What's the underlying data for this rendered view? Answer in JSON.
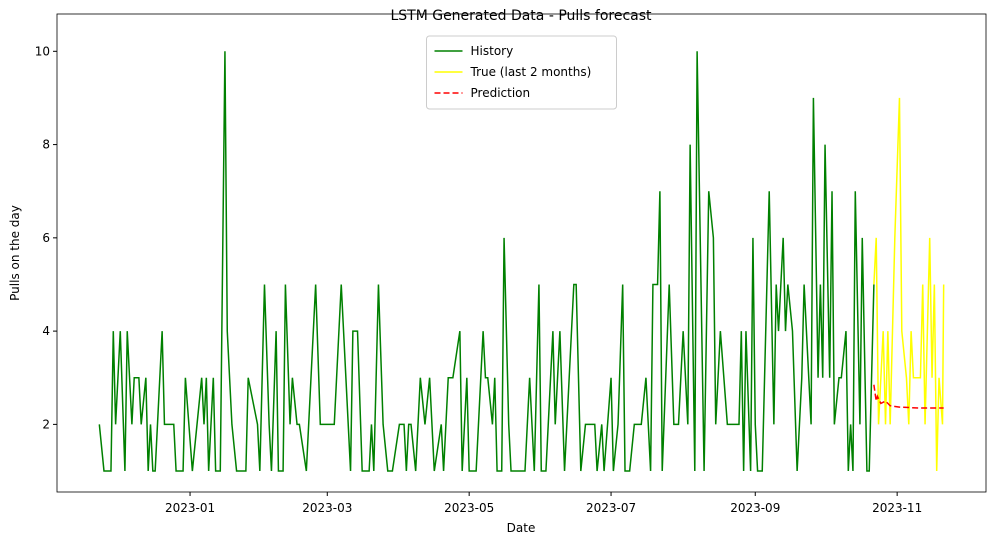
{
  "chart_data": {
    "type": "line",
    "title": "LSTM Generated Data - Pulls forecast",
    "x_label": "Date",
    "y_label": "Pulls on the day",
    "xlim": [
      -57.2,
      342.2
    ],
    "xticks": [
      {
        "value": 0,
        "label": "2023-01"
      },
      {
        "value": 59,
        "label": "2023-03"
      },
      {
        "value": 120,
        "label": "2023-05"
      },
      {
        "value": 181,
        "label": "2023-07"
      },
      {
        "value": 243,
        "label": "2023-09"
      },
      {
        "value": 304,
        "label": "2023-11"
      }
    ],
    "ylim": [
      0.55,
      10.8
    ],
    "yticks": [
      2,
      4,
      6,
      8,
      10
    ],
    "legend": "upper center",
    "series": [
      {
        "name": "History",
        "color": "#008000",
        "linestyle": "solid",
        "x": [
          -39,
          -37,
          -34,
          -33,
          -32,
          -30,
          -28,
          -27,
          -25,
          -24,
          -22,
          -21,
          -19,
          -18,
          -17,
          -16,
          -15,
          -12,
          -11,
          -9,
          -7,
          -6,
          -3,
          -2,
          1,
          3,
          5,
          6,
          7,
          8,
          10,
          11,
          13,
          15,
          16,
          18,
          20,
          24,
          25,
          29,
          30,
          32,
          34,
          35,
          37,
          38,
          40,
          41,
          43,
          44,
          46,
          47,
          50,
          52,
          54,
          56,
          59,
          62,
          65,
          67,
          69,
          70,
          72,
          74,
          77,
          78,
          79,
          81,
          83,
          85,
          87,
          90,
          92,
          93,
          94,
          95,
          97,
          99,
          101,
          103,
          105,
          108,
          109,
          111,
          113,
          116,
          117,
          119,
          120,
          123,
          126,
          127,
          128,
          130,
          131,
          132,
          134,
          135,
          137,
          138,
          142,
          144,
          146,
          148,
          150,
          151,
          153,
          156,
          157,
          159,
          161,
          163,
          165,
          166,
          168,
          170,
          172,
          174,
          175,
          177,
          178,
          181,
          182,
          184,
          186,
          187,
          189,
          191,
          194,
          196,
          198,
          199,
          201,
          202,
          203,
          206,
          208,
          210,
          212,
          214,
          215,
          217,
          218,
          221,
          223,
          225,
          226,
          228,
          231,
          236,
          237,
          238,
          239,
          241,
          242,
          243,
          244,
          246,
          249,
          251,
          252,
          253,
          255,
          256,
          257,
          259,
          261,
          263,
          264,
          267,
          268,
          270,
          271,
          272,
          273,
          275,
          276,
          277,
          279,
          280,
          282,
          283,
          284,
          285,
          286,
          288,
          289,
          291,
          292,
          294
        ],
        "values": [
          2,
          1,
          1,
          4,
          2,
          4,
          1,
          4,
          2,
          3,
          3,
          2,
          3,
          1,
          2,
          1,
          1,
          4,
          2,
          2,
          2,
          1,
          1,
          3,
          1,
          2,
          3,
          2,
          3,
          1,
          3,
          1,
          1,
          10,
          4,
          2,
          1,
          1,
          3,
          2,
          1,
          5,
          2,
          1,
          4,
          1,
          1,
          5,
          2,
          3,
          2,
          2,
          1,
          3,
          5,
          2,
          2,
          2,
          5,
          3,
          1,
          4,
          4,
          1,
          1,
          2,
          1,
          5,
          2,
          1,
          1,
          2,
          2,
          1,
          2,
          2,
          1,
          3,
          2,
          3,
          1,
          2,
          1,
          3,
          3,
          4,
          1,
          3,
          1,
          1,
          4,
          3,
          3,
          2,
          3,
          1,
          1,
          6,
          2,
          1,
          1,
          1,
          3,
          1,
          5,
          1,
          1,
          4,
          2,
          4,
          1,
          3,
          5,
          5,
          1,
          2,
          2,
          2,
          1,
          2,
          1,
          3,
          1,
          2,
          5,
          1,
          1,
          2,
          2,
          3,
          1,
          5,
          5,
          7,
          1,
          5,
          2,
          2,
          4,
          2,
          8,
          1,
          10,
          1,
          7,
          6,
          2,
          4,
          2,
          2,
          4,
          1,
          4,
          1,
          6,
          2,
          1,
          1,
          7,
          2,
          5,
          4,
          6,
          4,
          5,
          4,
          1,
          3,
          5,
          2,
          9,
          3,
          5,
          3,
          8,
          3,
          7,
          2,
          3,
          3,
          4,
          1,
          2,
          1,
          7,
          2,
          6,
          1,
          1,
          5
        ]
      },
      {
        "name": "True (last 2 months)",
        "color": "#ffff00",
        "linestyle": "solid",
        "x": [
          294,
          295,
          296,
          298,
          299,
          300,
          301,
          303,
          305,
          306,
          308,
          309,
          310,
          311,
          314,
          315,
          316,
          318,
          319,
          320,
          321,
          322,
          323.5,
          324
        ],
        "values": [
          5,
          6,
          2,
          4,
          2,
          4,
          2,
          6,
          9,
          4,
          3,
          2,
          4,
          3,
          3,
          5,
          2,
          6,
          3,
          5,
          1,
          3,
          2,
          5
        ]
      },
      {
        "name": "Prediction",
        "color": "#ff0000",
        "linestyle": "dashed",
        "x": [
          294,
          295,
          295.5,
          297,
          299,
          301,
          305,
          314,
          324
        ],
        "values": [
          2.85,
          2.5,
          2.6,
          2.45,
          2.5,
          2.4,
          2.37,
          2.35,
          2.35
        ]
      }
    ]
  }
}
